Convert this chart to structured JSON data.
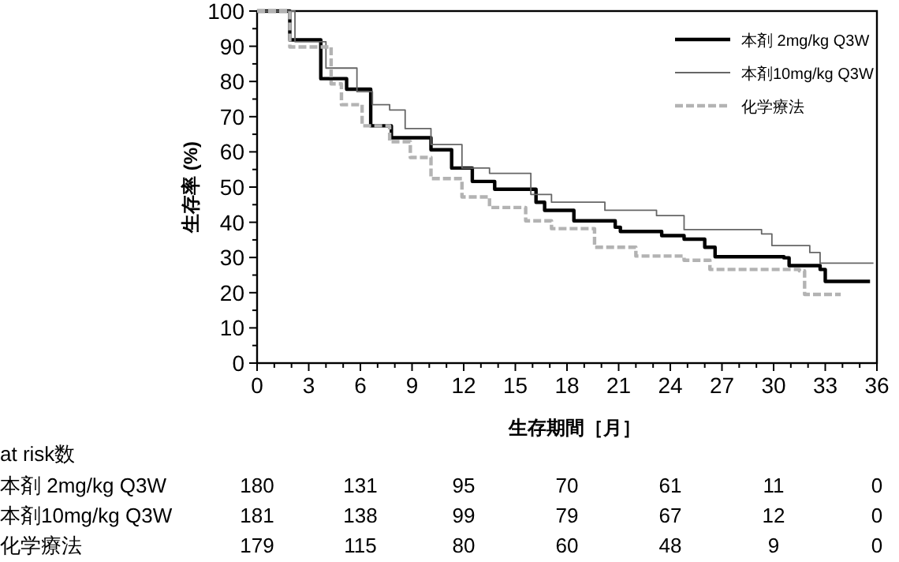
{
  "chart_data": {
    "type": "step",
    "xlabel": "生存期間［月］",
    "ylabel": "生存率 (%)",
    "xlim": [
      0,
      36
    ],
    "xticks": [
      0,
      3,
      6,
      9,
      12,
      15,
      18,
      21,
      24,
      27,
      30,
      33,
      36
    ],
    "ylim": [
      0,
      100
    ],
    "yticks": [
      0,
      10,
      20,
      30,
      40,
      50,
      60,
      70,
      80,
      90,
      100
    ],
    "legend": "top right",
    "grid": false,
    "series": [
      {
        "name": "本剤 2mg/kg Q3W",
        "color": "#000000",
        "line_style": "solid",
        "x": [
          0,
          1.9,
          3.7,
          5.2,
          6.6,
          7.8,
          10.1,
          11.3,
          12.5,
          13.8,
          16.2,
          16.7,
          18.4,
          20.8,
          21.1,
          23.5,
          24.8,
          26,
          26.6,
          30.6,
          30.9,
          32.7,
          33,
          35.6
        ],
        "values": [
          100,
          91.8,
          80.8,
          77.8,
          67.4,
          64,
          60.6,
          55.4,
          51.6,
          49.4,
          45.7,
          43.4,
          40.4,
          38.6,
          37.4,
          36.2,
          35.2,
          32.9,
          30.2,
          29.9,
          27.7,
          26.6,
          23.2,
          23.2
        ]
      },
      {
        "name": "本剤10mg/kg Q3W",
        "color": "#666666",
        "line_style": "solid",
        "x": [
          0,
          2.2,
          4,
          5.8,
          6.7,
          7.7,
          8.6,
          10.1,
          11.9,
          13.5,
          15.9,
          17.1,
          20.2,
          23.2,
          24.8,
          29.3,
          29.9,
          32.1,
          32.7,
          35.8
        ],
        "values": [
          100,
          91.3,
          83.8,
          77.1,
          73.4,
          71.9,
          66.6,
          62.1,
          55.4,
          53.9,
          47.9,
          45.7,
          43.4,
          41.9,
          37.9,
          36.7,
          33.4,
          31.4,
          28.4,
          28.4
        ]
      },
      {
        "name": "化学療法",
        "color": "#b3b3b3",
        "line_style": "dashed",
        "x": [
          0,
          1.9,
          4.3,
          4.9,
          6.1,
          7.7,
          8.9,
          10.1,
          11.9,
          13.5,
          15.6,
          17.1,
          19.6,
          22,
          24.8,
          26.3,
          31.5,
          31.8,
          33.9
        ],
        "values": [
          100,
          89.8,
          79.3,
          73.4,
          67.4,
          62.9,
          58.4,
          52.4,
          47.2,
          44.2,
          40.4,
          38.2,
          32.9,
          30.4,
          29.2,
          26.6,
          26.2,
          19.5,
          19.5
        ]
      }
    ],
    "annotations": [
      "at risk数",
      "本剤 2mg/kg Q3W",
      "180",
      "131",
      "95",
      "70",
      "61",
      "11",
      "0",
      "本剤10mg/kg Q3W",
      "181",
      "138",
      "99",
      "79",
      "67",
      "12",
      "0",
      "化学療法",
      "179",
      "115",
      "80",
      "60",
      "48",
      "9",
      "0"
    ]
  }
}
